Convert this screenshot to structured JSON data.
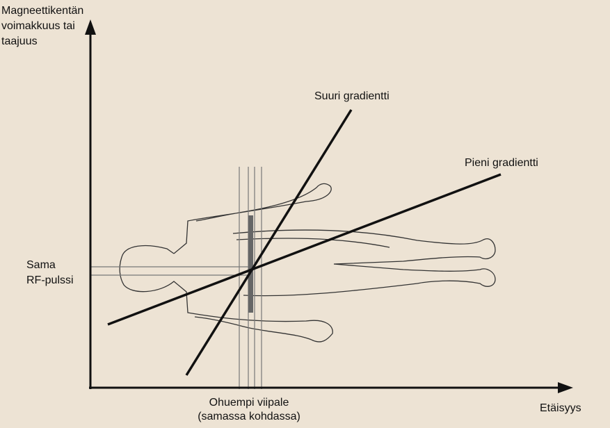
{
  "y_axis_label": [
    "Magneettikentän",
    "voimakkuus tai",
    "taajuus"
  ],
  "x_axis_label": "Etäisyys",
  "steep_line_label": "Suuri gradientti",
  "shallow_line_label": "Pieni gradientti",
  "rf_label": [
    "Sama",
    "RF-pulssi"
  ],
  "slice_label": [
    "Ohuempi viipale",
    "(samassa kohdassa)"
  ]
}
